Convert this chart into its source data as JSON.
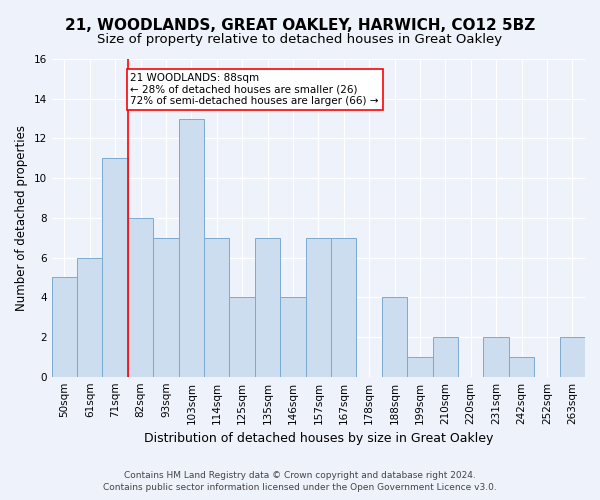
{
  "title": "21, WOODLANDS, GREAT OAKLEY, HARWICH, CO12 5BZ",
  "subtitle": "Size of property relative to detached houses in Great Oakley",
  "xlabel": "Distribution of detached houses by size in Great Oakley",
  "ylabel": "Number of detached properties",
  "categories": [
    "50sqm",
    "61sqm",
    "71sqm",
    "82sqm",
    "93sqm",
    "103sqm",
    "114sqm",
    "125sqm",
    "135sqm",
    "146sqm",
    "157sqm",
    "167sqm",
    "178sqm",
    "188sqm",
    "199sqm",
    "210sqm",
    "220sqm",
    "231sqm",
    "242sqm",
    "252sqm",
    "263sqm"
  ],
  "values": [
    5,
    6,
    11,
    8,
    7,
    13,
    7,
    4,
    7,
    4,
    7,
    7,
    0,
    4,
    1,
    2,
    0,
    2,
    1,
    0,
    2
  ],
  "bar_color": "#ccddf0",
  "bar_edge_color": "#7aaad0",
  "ylim": [
    0,
    16
  ],
  "yticks": [
    0,
    2,
    4,
    6,
    8,
    10,
    12,
    14,
    16
  ],
  "reference_line_index": 3,
  "annotation_text_line1": "21 WOODLANDS: 88sqm",
  "annotation_text_line2": "← 28% of detached houses are smaller (26)",
  "annotation_text_line3": "72% of semi-detached houses are larger (66) →",
  "footer_line1": "Contains HM Land Registry data © Crown copyright and database right 2024.",
  "footer_line2": "Contains public sector information licensed under the Open Government Licence v3.0.",
  "background_color": "#eef2fa",
  "grid_color": "#ffffff",
  "title_fontsize": 11,
  "subtitle_fontsize": 9.5,
  "xlabel_fontsize": 9,
  "ylabel_fontsize": 8.5,
  "tick_fontsize": 7.5,
  "annotation_fontsize": 7.5,
  "footer_fontsize": 6.5
}
